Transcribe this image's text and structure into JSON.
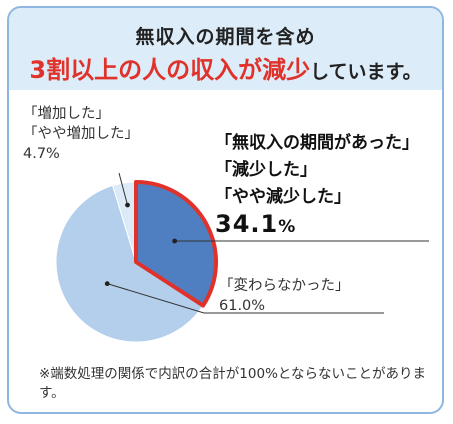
{
  "title_line1": "無収入の期間を含め",
  "title_line2_highlight": "3割以上の人の収入が減少",
  "title_line2_rest": "しています。",
  "chart_data": {
    "type": "pie",
    "slices": [
      {
        "label_lines": [
          "「無収入の期間があった」",
          "「減少した」",
          "「やや減少した」"
        ],
        "value": 34.1,
        "value_text": "34.1",
        "unit": "%",
        "color": "#4f7fc0",
        "highlight": true
      },
      {
        "label_lines": [
          "「変わらなかった」"
        ],
        "value": 61.0,
        "value_text": "61.0%",
        "color": "#b3cfec"
      },
      {
        "label_lines": [
          "「増加した」",
          "「やや増加した」"
        ],
        "value": 4.7,
        "value_text": "4.7%",
        "color": "#dbeaf6"
      }
    ],
    "highlight_border_color": "#e0322a"
  },
  "note": "※端数処理の関係で内訳の合計が100%とならないことがあります。"
}
